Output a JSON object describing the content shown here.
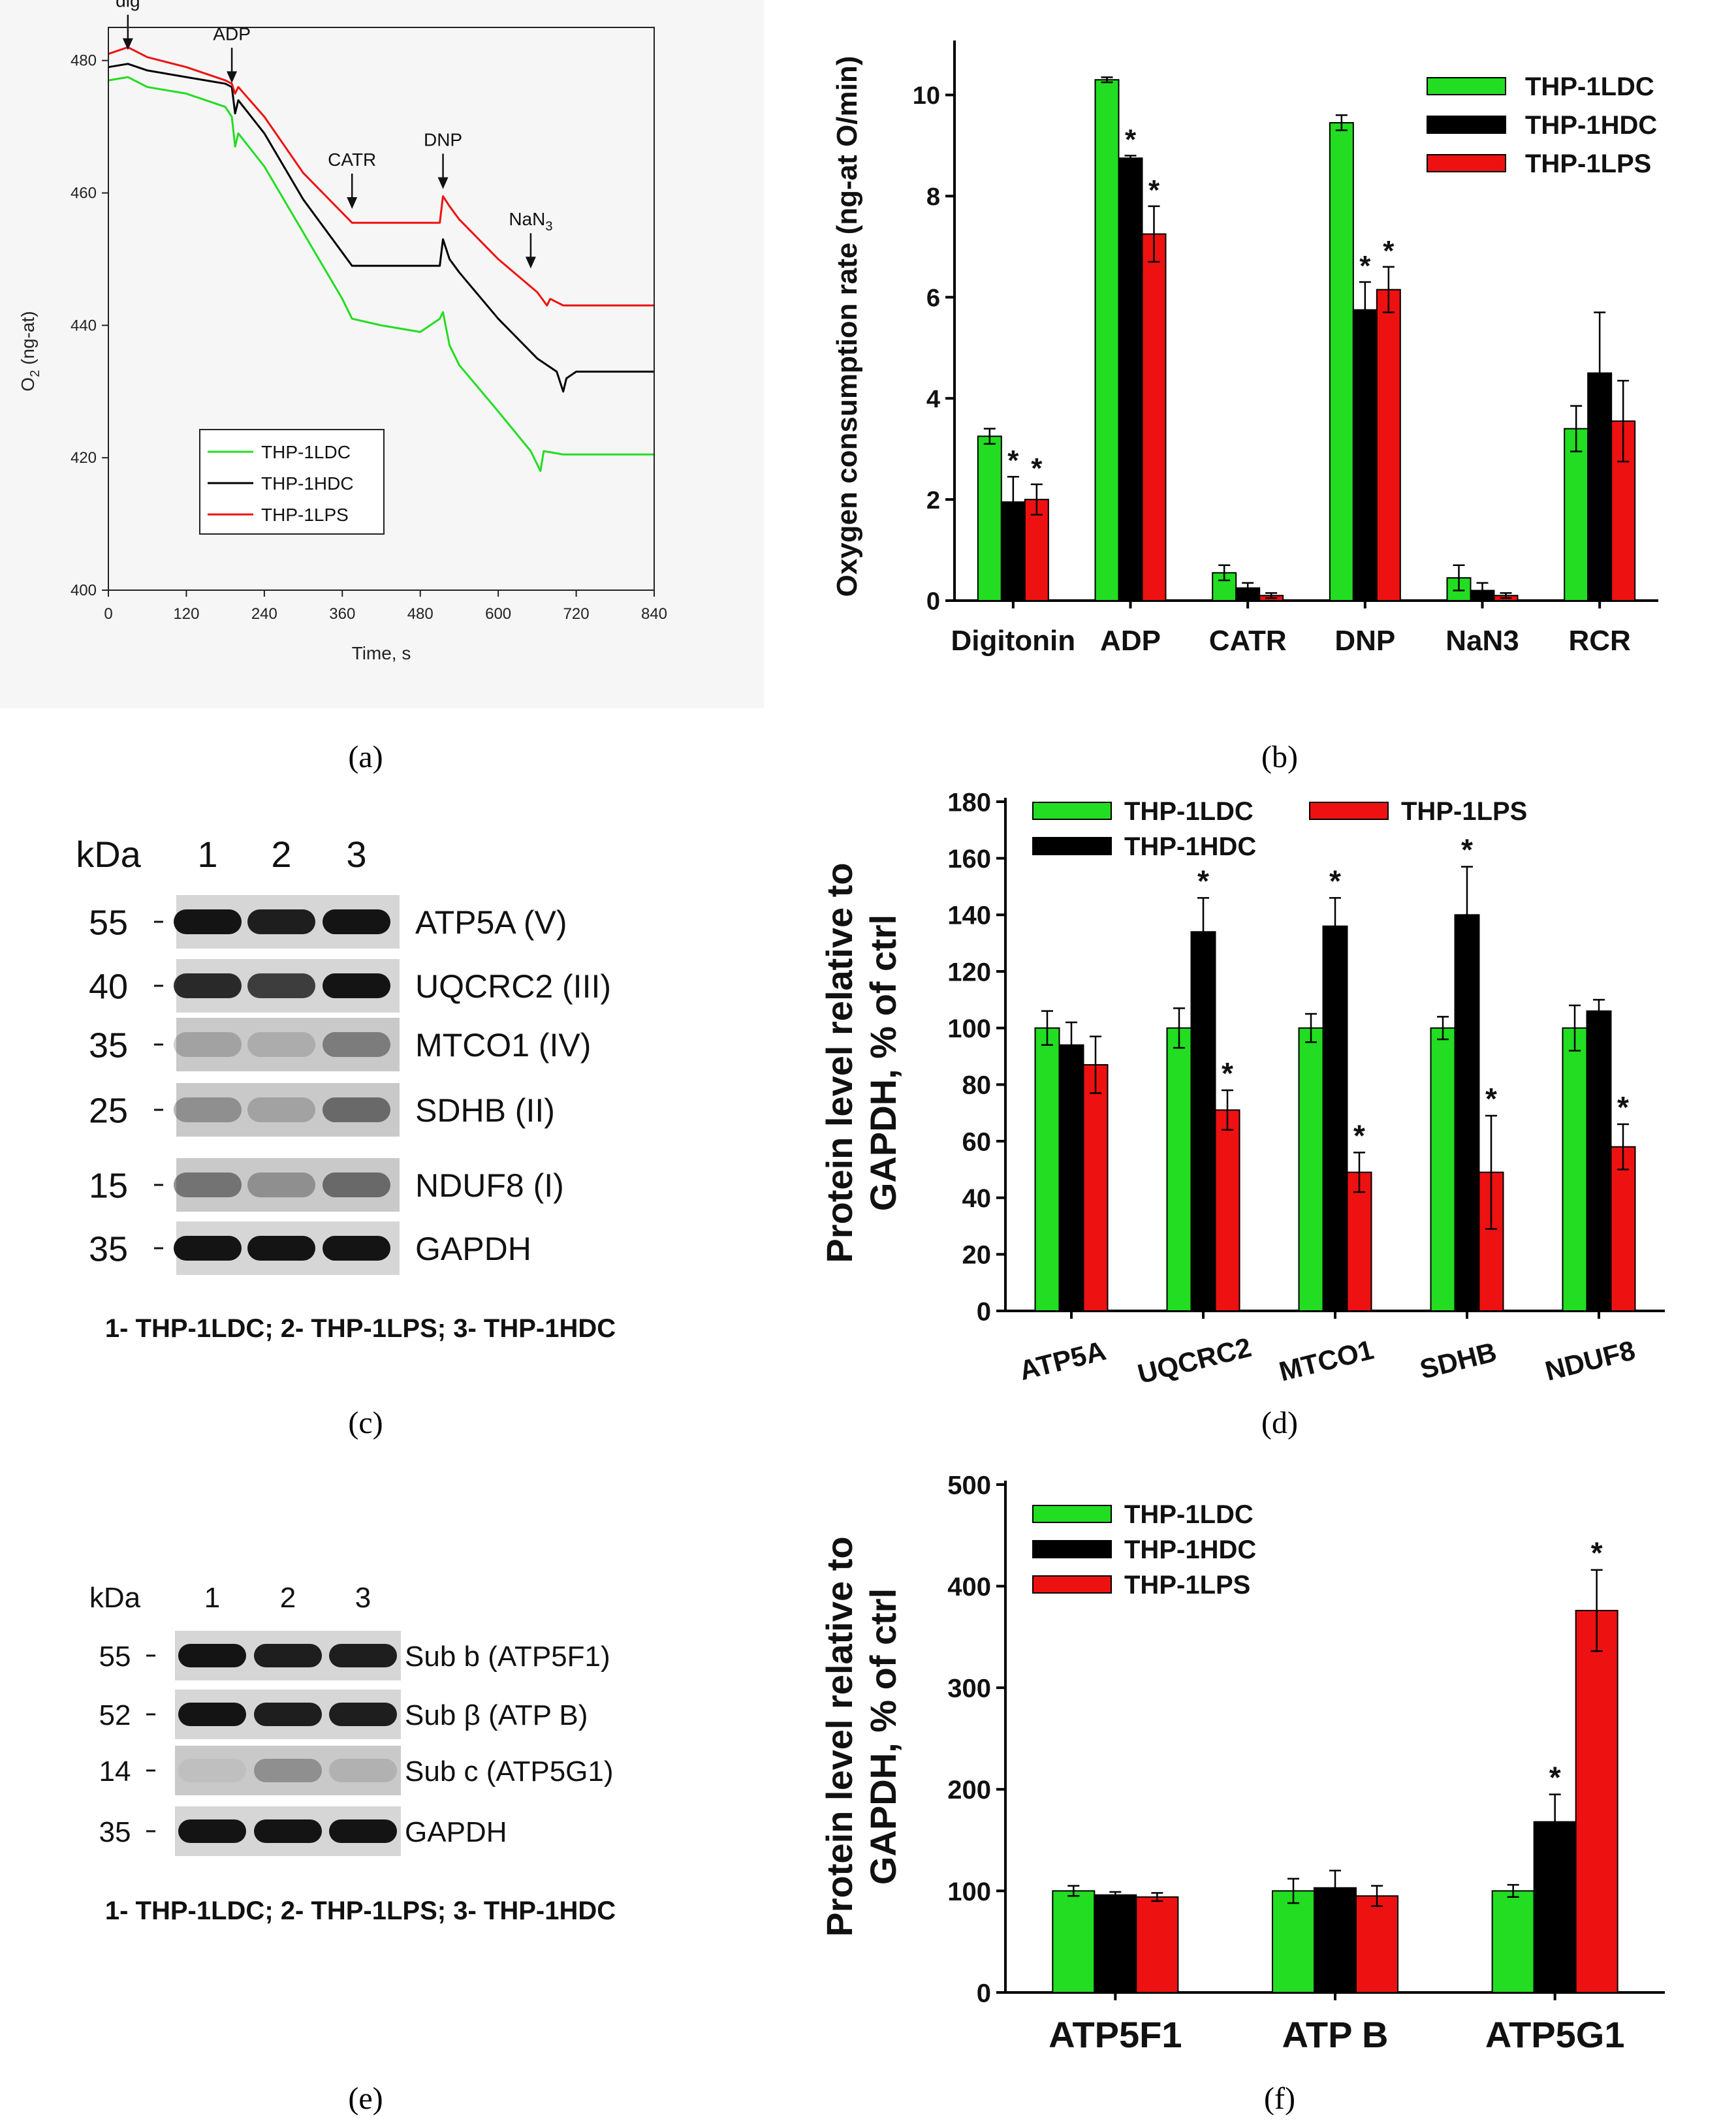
{
  "colors": {
    "ldc": "#22dd22",
    "hdc": "#000000",
    "lps": "#ee1111"
  },
  "panel_labels": [
    "(a)",
    "(b)",
    "(c)",
    "(d)",
    "(e)",
    "(f)"
  ],
  "chart_data": [
    {
      "panel": "a",
      "type": "line",
      "xlabel": "Time, s",
      "ylabel": "O2 (ng-at)",
      "ylabel_main": "O",
      "ylabel_sub": "2",
      "ylabel_rest": " (ng-at)",
      "xlim": [
        0,
        840
      ],
      "ylim": [
        400,
        485
      ],
      "xticks": [
        "0",
        "120",
        "240",
        "360",
        "480",
        "600",
        "720",
        "840"
      ],
      "yticks": [
        "400",
        "420",
        "440",
        "460",
        "480"
      ],
      "annotations": [
        {
          "text": "dig",
          "x": 30,
          "y": 481
        },
        {
          "text": "ADP",
          "x": 190,
          "y": 476
        },
        {
          "text": "CATR",
          "x": 375,
          "y": 457
        },
        {
          "text": "DNP",
          "x": 515,
          "y": 460
        },
        {
          "text": "NaN3",
          "main": "NaN",
          "sub": "3",
          "x": 650,
          "y": 448
        }
      ],
      "legend": [
        "THP-1LDC",
        "THP-1HDC",
        "THP-1LPS"
      ],
      "series": [
        {
          "name": "THP-1LDC",
          "color": "#22dd22",
          "x": [
            0,
            30,
            60,
            120,
            180,
            190,
            195,
            200,
            240,
            300,
            360,
            375,
            420,
            480,
            510,
            515,
            525,
            540,
            600,
            650,
            665,
            670,
            700,
            760,
            840
          ],
          "y": [
            477,
            477.5,
            476,
            475,
            473,
            471.5,
            467,
            469,
            464,
            454,
            444,
            441,
            440,
            439,
            441,
            442,
            437,
            434,
            427,
            421,
            418,
            421,
            420.5,
            420.5,
            420.5
          ]
        },
        {
          "name": "THP-1HDC",
          "color": "#000000",
          "x": [
            0,
            30,
            60,
            120,
            180,
            190,
            195,
            200,
            240,
            300,
            360,
            375,
            420,
            480,
            510,
            515,
            525,
            540,
            600,
            660,
            690,
            700,
            705,
            720,
            760,
            840
          ],
          "y": [
            479,
            479.5,
            478.5,
            477.5,
            476.5,
            476,
            472,
            474,
            469,
            459,
            451,
            449,
            449,
            449,
            449,
            453,
            450,
            448,
            441,
            435,
            433,
            430,
            432,
            433,
            433,
            433
          ]
        },
        {
          "name": "THP-1LPS",
          "color": "#ee1111",
          "x": [
            0,
            30,
            60,
            120,
            180,
            190,
            195,
            200,
            240,
            300,
            360,
            375,
            420,
            480,
            510,
            515,
            525,
            540,
            600,
            660,
            675,
            680,
            700,
            760,
            840
          ],
          "y": [
            481,
            482,
            480.5,
            479,
            477,
            476.5,
            475,
            476,
            471.5,
            463,
            457,
            455.5,
            455.5,
            455.5,
            455.5,
            459.5,
            458,
            456,
            450,
            445,
            443,
            444,
            443,
            443,
            443
          ]
        }
      ]
    },
    {
      "panel": "b",
      "type": "bar",
      "ylabel": "Oxygen consumption rate (ng-at O/min)",
      "ylim": [
        0,
        11
      ],
      "yticks": [
        "0",
        "2",
        "4",
        "6",
        "8",
        "10"
      ],
      "categories": [
        "Digitonin",
        "ADP",
        "CATR",
        "DNP",
        "NaN3",
        "RCR"
      ],
      "series": [
        {
          "name": "THP-1LDC",
          "color": "#22dd22",
          "values": [
            3.25,
            10.3,
            0.55,
            9.45,
            0.45,
            3.4
          ],
          "errors": [
            0.15,
            0.05,
            0.15,
            0.15,
            0.25,
            0.45
          ]
        },
        {
          "name": "THP-1HDC",
          "color": "#000000",
          "values": [
            1.95,
            8.75,
            0.25,
            5.75,
            0.2,
            4.5
          ],
          "errors": [
            0.5,
            0.05,
            0.1,
            0.55,
            0.15,
            1.2
          ]
        },
        {
          "name": "THP-1LPS",
          "color": "#ee1111",
          "values": [
            2.0,
            7.25,
            0.1,
            6.15,
            0.1,
            3.55
          ],
          "errors": [
            0.3,
            0.55,
            0.05,
            0.45,
            0.05,
            0.8
          ]
        }
      ],
      "significance": [
        [
          false,
          true,
          true
        ],
        [
          false,
          true,
          true
        ],
        [
          false,
          false,
          false
        ],
        [
          false,
          true,
          true
        ],
        [
          false,
          false,
          false
        ],
        [
          false,
          false,
          false
        ]
      ],
      "star": "*"
    },
    {
      "panel": "d",
      "type": "bar",
      "ylabel_lines": [
        "Protein level relative to",
        "GAPDH, % of ctrl"
      ],
      "ylim": [
        0,
        180
      ],
      "yticks": [
        "0",
        "20",
        "40",
        "60",
        "80",
        "100",
        "120",
        "140",
        "160",
        "180"
      ],
      "categories": [
        "ATP5A",
        "UQCRC2",
        "MTCO1",
        "SDHB",
        "NDUF8"
      ],
      "series": [
        {
          "name": "THP-1LDC",
          "color": "#22dd22",
          "values": [
            100,
            100,
            100,
            100,
            100
          ],
          "errors": [
            6,
            7,
            5,
            4,
            8
          ]
        },
        {
          "name": "THP-1HDC",
          "color": "#000000",
          "values": [
            94,
            134,
            136,
            140,
            106
          ],
          "errors": [
            8,
            12,
            10,
            17,
            4
          ]
        },
        {
          "name": "THP-1LPS",
          "color": "#ee1111",
          "values": [
            87,
            71,
            49,
            49,
            58
          ],
          "errors": [
            10,
            7,
            7,
            20,
            8
          ]
        }
      ],
      "significance": [
        [
          false,
          false,
          false
        ],
        [
          false,
          true,
          true
        ],
        [
          false,
          true,
          true
        ],
        [
          false,
          true,
          true
        ],
        [
          false,
          false,
          true
        ]
      ],
      "star": "*"
    },
    {
      "panel": "f",
      "type": "bar",
      "ylabel_lines": [
        "Protein level relative to",
        "GAPDH, % of ctrl"
      ],
      "ylim": [
        0,
        500
      ],
      "yticks": [
        "0",
        "100",
        "200",
        "300",
        "400",
        "500"
      ],
      "categories": [
        "ATP5F1",
        "ATP B",
        "ATP5G1"
      ],
      "series": [
        {
          "name": "THP-1LDC",
          "color": "#22dd22",
          "values": [
            100,
            100,
            100
          ],
          "errors": [
            5,
            12,
            6
          ]
        },
        {
          "name": "THP-1HDC",
          "color": "#000000",
          "values": [
            96,
            103,
            168
          ],
          "errors": [
            3,
            17,
            27
          ]
        },
        {
          "name": "THP-1LPS",
          "color": "#ee1111",
          "values": [
            94,
            95,
            376
          ],
          "errors": [
            4,
            10,
            40
          ]
        }
      ],
      "significance": [
        [
          false,
          false,
          false
        ],
        [
          false,
          false,
          false
        ],
        [
          false,
          true,
          true
        ]
      ],
      "star": "*"
    }
  ],
  "blot_c": {
    "header": "kDa",
    "lanes": [
      "1",
      "2",
      "3"
    ],
    "rows": [
      {
        "kda": "55",
        "label": "ATP5A (V)",
        "intensity": [
          0.95,
          0.9,
          0.95
        ]
      },
      {
        "kda": "40",
        "label": "UQCRC2 (III)",
        "intensity": [
          0.85,
          0.75,
          0.95
        ]
      },
      {
        "kda": "35",
        "label": "MTCO1 (IV)",
        "intensity": [
          0.2,
          0.15,
          0.4
        ]
      },
      {
        "kda": "25",
        "label": "SDHB (II)",
        "intensity": [
          0.3,
          0.2,
          0.5
        ]
      },
      {
        "kda": "15",
        "label": "NDUF8 (I)",
        "intensity": [
          0.45,
          0.3,
          0.5
        ]
      },
      {
        "kda": "35",
        "label": "GAPDH",
        "intensity": [
          0.95,
          0.95,
          0.95
        ]
      }
    ],
    "caption": "1- THP-1LDC; 2- THP-1LPS; 3- THP-1HDC"
  },
  "blot_e": {
    "header": "kDa",
    "lanes": [
      "1",
      "2",
      "3"
    ],
    "rows": [
      {
        "kda": "55",
        "label": "Sub b (ATP5F1)",
        "intensity": [
          0.95,
          0.9,
          0.9
        ]
      },
      {
        "kda": "52",
        "label": "Sub β (ATP B)",
        "intensity": [
          0.95,
          0.9,
          0.9
        ]
      },
      {
        "kda": "14",
        "label": "Sub c (ATP5G1)",
        "intensity": [
          0.05,
          0.3,
          0.12
        ]
      },
      {
        "kda": "35",
        "label": "GAPDH",
        "intensity": [
          0.95,
          0.95,
          0.95
        ]
      }
    ],
    "caption": "1- THP-1LDC; 2- THP-1LPS; 3- THP-1HDC"
  }
}
